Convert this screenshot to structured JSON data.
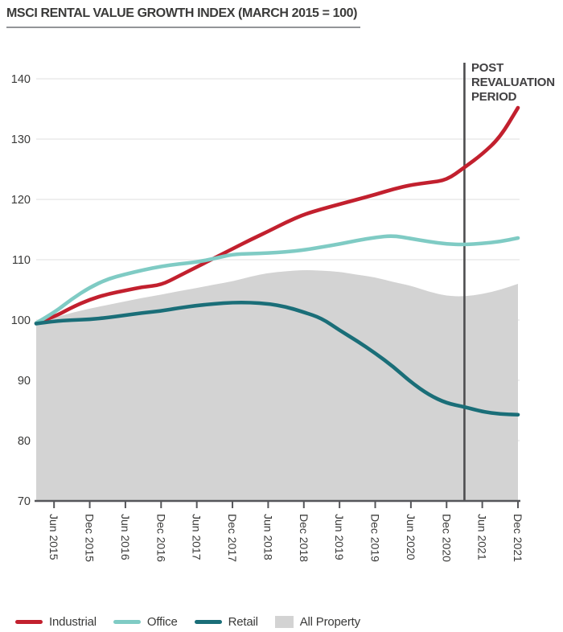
{
  "title": "MSCI RENTAL VALUE GROWTH INDEX (MARCH 2015 = 100)",
  "annotation": {
    "label": "POST\nREVALUATION\nPERIOD"
  },
  "colors": {
    "industrial": "#c2202e",
    "office": "#7fcbc4",
    "retail": "#1a6e78",
    "all_property": "#d3d3d3",
    "grid": "#eaeaea",
    "axis": "#55565a",
    "vline": "#4d4d4f",
    "text": "#3a3a39",
    "title_rule": "#939598"
  },
  "legend": {
    "items": [
      {
        "label": "Industrial",
        "color": "#c2202e",
        "swatch": "line"
      },
      {
        "label": "Office",
        "color": "#7fcbc4",
        "swatch": "line"
      },
      {
        "label": "Retail",
        "color": "#1a6e78",
        "swatch": "line"
      },
      {
        "label": "All Property",
        "color": "#d3d3d3",
        "swatch": "rect"
      }
    ]
  },
  "chart_data": {
    "type": "line",
    "title": "MSCI Rental Value Growth Index (March 2015 = 100)",
    "xlabel": "",
    "ylabel": "",
    "ylim": [
      70,
      140
    ],
    "yticks": [
      70,
      80,
      90,
      100,
      110,
      120,
      130,
      140
    ],
    "grid": true,
    "legend_position": "bottom",
    "categories": [
      "Mar 2015",
      "Jun 2015",
      "Sep 2015",
      "Dec 2015",
      "Mar 2016",
      "Jun 2016",
      "Sep 2016",
      "Dec 2016",
      "Mar 2017",
      "Jun 2017",
      "Sep 2017",
      "Dec 2017",
      "Mar 2018",
      "Jun 2018",
      "Sep 2018",
      "Dec 2018",
      "Mar 2019",
      "Jun 2019",
      "Sep 2019",
      "Dec 2019",
      "Mar 2020",
      "Jun 2020",
      "Sep 2020",
      "Dec 2020",
      "Mar 2021",
      "Jun 2021",
      "Sep 2021",
      "Dec 2021"
    ],
    "x_tick_labels": [
      "Jun 2015",
      "Dec 2015",
      "Jun 2016",
      "Dec 2016",
      "Jun 2017",
      "Dec 2017",
      "Jun 2018",
      "Dec 2018",
      "Jun 2019",
      "Dec 2019",
      "Jun 2020",
      "Dec 2020",
      "Jun 2021",
      "Dec 2021"
    ],
    "vline": {
      "category": "Mar 2021",
      "index": 24,
      "label": "POST REVALUATION PERIOD"
    },
    "series": [
      {
        "name": "Industrial",
        "color": "#c2202e",
        "style": "line",
        "values": [
          99.5,
          100.5,
          102.1,
          103.4,
          104.3,
          104.9,
          105.5,
          105.8,
          107.3,
          108.8,
          110.3,
          111.8,
          113.3,
          114.7,
          116.2,
          117.5,
          118.4,
          119.2,
          120.0,
          120.8,
          121.7,
          122.4,
          122.8,
          123.2,
          125.3,
          127.5,
          130.3,
          135.2
        ]
      },
      {
        "name": "Office",
        "color": "#7fcbc4",
        "style": "line",
        "values": [
          99.5,
          101.2,
          103.5,
          105.4,
          106.8,
          107.6,
          108.3,
          108.9,
          109.3,
          109.6,
          110.2,
          110.9,
          111.0,
          111.1,
          111.3,
          111.6,
          112.1,
          112.6,
          113.2,
          113.7,
          114.0,
          113.5,
          113.0,
          112.6,
          112.5,
          112.7,
          113.0,
          113.6
        ]
      },
      {
        "name": "Retail",
        "color": "#1a6e78",
        "style": "line",
        "values": [
          99.4,
          99.8,
          100.0,
          100.1,
          100.4,
          100.8,
          101.2,
          101.5,
          102.0,
          102.4,
          102.7,
          102.9,
          102.9,
          102.7,
          102.2,
          101.3,
          100.3,
          98.3,
          96.5,
          94.5,
          92.3,
          89.7,
          87.6,
          86.2,
          85.6,
          84.8,
          84.4,
          84.3
        ]
      },
      {
        "name": "All Property",
        "color": "#d3d3d3",
        "style": "area",
        "values": [
          99.4,
          100.4,
          101.2,
          101.9,
          102.5,
          103.1,
          103.7,
          104.2,
          104.8,
          105.3,
          105.9,
          106.4,
          107.2,
          107.8,
          108.1,
          108.3,
          108.2,
          108.0,
          107.5,
          107.1,
          106.3,
          105.7,
          104.7,
          104.0,
          103.9,
          104.3,
          105.0,
          106.0
        ]
      }
    ]
  }
}
